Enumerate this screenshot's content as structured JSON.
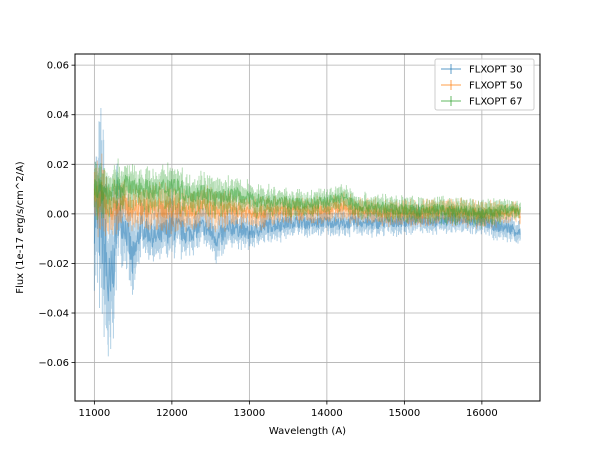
{
  "chart_data": {
    "type": "line",
    "title": "",
    "xlabel": "Wavelength (A)",
    "ylabel": "Flux (1e-17 erg/s/cm^2/A)",
    "xlim": [
      10750,
      16750
    ],
    "ylim": [
      -0.0755,
      0.0645
    ],
    "xticks": [
      11000,
      12000,
      13000,
      14000,
      15000,
      16000
    ],
    "yticks": [
      -0.06,
      -0.04,
      -0.02,
      0.0,
      0.02,
      0.04,
      0.06
    ],
    "xtick_labels": [
      "11000",
      "12000",
      "13000",
      "14000",
      "15000",
      "16000"
    ],
    "ytick_labels": [
      "−0.06",
      "−0.04",
      "−0.02",
      "0.00",
      "0.02",
      "0.04",
      "0.06"
    ],
    "grid": true,
    "legend_position": "top-right",
    "series": [
      {
        "name": "FLXOPT 30",
        "color": "#1f77b4",
        "x": [
          11000,
          11100,
          11200,
          11300,
          11400,
          11500,
          11600,
          11800,
          12000,
          12200,
          12400,
          12600,
          12800,
          13000,
          13200,
          13400,
          13600,
          13800,
          14000,
          14200,
          14400,
          14600,
          14800,
          15000,
          15200,
          15400,
          15600,
          15800,
          16000,
          16200,
          16400,
          16500
        ],
        "y": [
          0.0,
          -0.005,
          -0.035,
          0.0,
          -0.005,
          -0.02,
          -0.005,
          -0.01,
          -0.005,
          -0.008,
          -0.005,
          -0.01,
          -0.005,
          -0.008,
          -0.005,
          -0.004,
          -0.003,
          -0.004,
          -0.003,
          -0.004,
          -0.003,
          -0.004,
          -0.003,
          -0.003,
          -0.002,
          -0.003,
          -0.002,
          -0.003,
          -0.003,
          -0.005,
          -0.006,
          -0.008
        ],
        "err": [
          0.02,
          0.035,
          0.03,
          0.015,
          0.01,
          0.015,
          0.008,
          0.008,
          0.01,
          0.007,
          0.006,
          0.008,
          0.006,
          0.005,
          0.005,
          0.005,
          0.004,
          0.004,
          0.004,
          0.004,
          0.004,
          0.004,
          0.004,
          0.004,
          0.004,
          0.004,
          0.004,
          0.004,
          0.004,
          0.004,
          0.004,
          0.004
        ]
      },
      {
        "name": "FLXOPT 50",
        "color": "#ff7f0e",
        "x": [
          11000,
          11100,
          11200,
          11300,
          11400,
          11500,
          11600,
          11800,
          12000,
          12200,
          12400,
          12600,
          12800,
          13000,
          13200,
          13400,
          13600,
          13800,
          14000,
          14200,
          14400,
          14600,
          14800,
          15000,
          15200,
          15400,
          15600,
          15800,
          16000,
          16200,
          16400,
          16500
        ],
        "y": [
          0.005,
          0.006,
          0.002,
          0.003,
          0.004,
          0.002,
          0.003,
          0.002,
          0.003,
          0.002,
          0.003,
          0.001,
          0.002,
          0.001,
          0.001,
          0.001,
          0.001,
          0.001,
          0.002,
          0.003,
          0.001,
          0.001,
          0.0,
          0.001,
          0.0,
          0.001,
          0.001,
          0.0,
          0.0,
          0.0,
          0.001,
          0.0
        ],
        "err": [
          0.01,
          0.012,
          0.008,
          0.008,
          0.007,
          0.007,
          0.007,
          0.007,
          0.008,
          0.006,
          0.006,
          0.006,
          0.005,
          0.005,
          0.005,
          0.004,
          0.004,
          0.004,
          0.004,
          0.004,
          0.004,
          0.004,
          0.004,
          0.004,
          0.004,
          0.004,
          0.004,
          0.004,
          0.004,
          0.004,
          0.003,
          0.003
        ]
      },
      {
        "name": "FLXOPT 67",
        "color": "#2ca02c",
        "x": [
          11000,
          11100,
          11200,
          11300,
          11400,
          11500,
          11600,
          11800,
          12000,
          12200,
          12400,
          12600,
          12800,
          13000,
          13200,
          13400,
          13600,
          13800,
          14000,
          14200,
          14400,
          14600,
          14800,
          15000,
          15200,
          15400,
          15600,
          15800,
          16000,
          16200,
          16400,
          16500
        ],
        "y": [
          0.012,
          0.01,
          0.008,
          0.01,
          0.012,
          0.01,
          0.011,
          0.009,
          0.012,
          0.008,
          0.009,
          0.006,
          0.008,
          0.006,
          0.005,
          0.005,
          0.004,
          0.004,
          0.005,
          0.007,
          0.003,
          0.003,
          0.002,
          0.002,
          0.001,
          0.002,
          0.001,
          0.001,
          0.0,
          0.001,
          0.002,
          0.001
        ],
        "err": [
          0.01,
          0.01,
          0.007,
          0.008,
          0.007,
          0.007,
          0.007,
          0.006,
          0.008,
          0.006,
          0.006,
          0.006,
          0.005,
          0.005,
          0.005,
          0.004,
          0.004,
          0.004,
          0.004,
          0.004,
          0.004,
          0.004,
          0.004,
          0.004,
          0.004,
          0.004,
          0.004,
          0.004,
          0.004,
          0.004,
          0.003,
          0.003
        ]
      }
    ]
  }
}
